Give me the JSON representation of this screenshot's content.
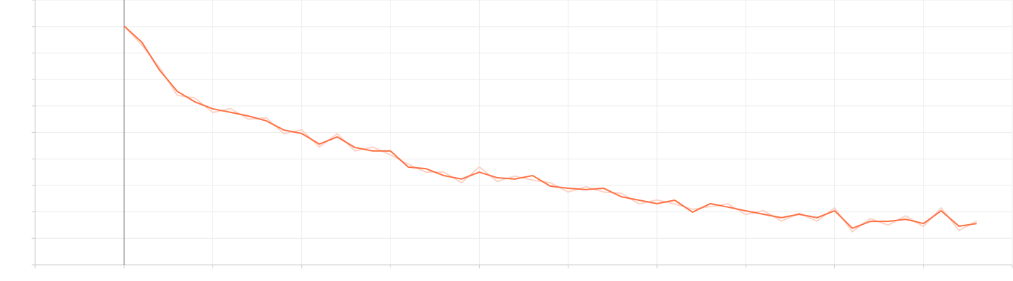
{
  "chart_data": {
    "type": "line",
    "x": [
      0,
      0.2,
      0.4,
      0.6,
      0.8,
      1.0,
      1.2,
      1.4,
      1.6,
      1.8,
      2.0,
      2.2,
      2.4,
      2.6,
      2.8,
      3.0,
      3.2,
      3.4,
      3.6,
      3.8,
      4.0,
      4.2,
      4.4,
      4.6,
      4.8,
      5.0,
      5.2,
      5.4,
      5.6,
      5.8,
      6.0,
      6.2,
      6.4,
      6.6,
      6.8,
      7.0,
      7.2,
      7.4,
      7.6,
      7.8,
      8.0,
      8.2,
      8.4,
      8.6,
      8.8,
      9.0,
      9.2,
      9.4,
      9.6
    ],
    "series": [
      {
        "color": "#fbd3c6",
        "values": [
          9.02,
          8.3,
          7.45,
          6.4,
          6.3,
          5.75,
          5.9,
          5.5,
          5.55,
          4.95,
          5.1,
          4.45,
          4.95,
          4.3,
          4.45,
          4.15,
          3.8,
          3.5,
          3.5,
          3.1,
          3.7,
          3.15,
          3.35,
          3.2,
          3.1,
          2.75,
          2.95,
          2.75,
          2.7,
          2.3,
          2.45,
          2.3,
          2.1,
          2.2,
          2.3,
          1.9,
          2.05,
          1.65,
          1.95,
          1.65,
          2.15,
          1.25,
          1.75,
          1.5,
          1.85,
          1.45,
          2.15,
          1.3,
          1.65
        ]
      },
      {
        "color": "#ff7043",
        "values": [
          9.02,
          8.41,
          7.35,
          6.55,
          6.15,
          5.89,
          5.76,
          5.62,
          5.44,
          5.09,
          4.96,
          4.56,
          4.83,
          4.43,
          4.3,
          4.3,
          3.69,
          3.63,
          3.37,
          3.24,
          3.5,
          3.29,
          3.24,
          3.37,
          2.97,
          2.89,
          2.84,
          2.89,
          2.57,
          2.44,
          2.31,
          2.44,
          1.99,
          2.31,
          2.18,
          2.04,
          1.91,
          1.78,
          1.91,
          1.78,
          2.04,
          1.38,
          1.64,
          1.64,
          1.72,
          1.56,
          2.04,
          1.46,
          1.56
        ]
      }
    ],
    "xlim": [
      -1,
      10
    ],
    "xticks": [
      -1,
      0,
      1,
      2,
      3,
      4,
      5,
      6,
      7,
      8,
      9,
      10
    ],
    "ylim": [
      0,
      10
    ],
    "yticks": [
      0,
      1,
      2,
      3,
      4,
      5,
      6,
      7,
      8,
      9,
      10
    ],
    "grid": true
  }
}
